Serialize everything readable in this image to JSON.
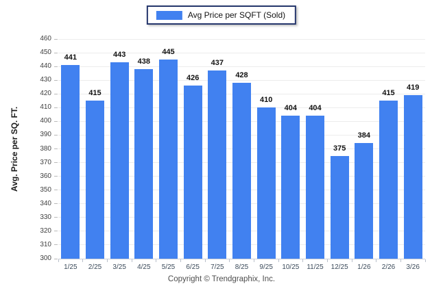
{
  "legend": {
    "label": "Avg Price per SQFT (Sold)"
  },
  "y_axis_title": "Avg. Price per SQ. FT.",
  "footer": "Copyright © Trendgraphix, Inc.",
  "colors": {
    "bar": "#4181f0",
    "legend_border": "#24356b",
    "gridline": "#ececec",
    "axis": "#c8cdd8"
  },
  "chart_data": {
    "type": "bar",
    "title": "Avg Price per SQFT (Sold)",
    "categories": [
      "1/25",
      "2/25",
      "3/25",
      "4/25",
      "5/25",
      "6/25",
      "7/25",
      "8/25",
      "9/25",
      "10/25",
      "11/25",
      "12/25",
      "1/26",
      "2/26",
      "3/26"
    ],
    "values": [
      441,
      415,
      443,
      438,
      445,
      426,
      437,
      428,
      410,
      404,
      404,
      375,
      384,
      415,
      419
    ],
    "series": [
      {
        "name": "Avg Price per SQFT (Sold)",
        "values": [
          441,
          415,
          443,
          438,
          445,
          426,
          437,
          428,
          410,
          404,
          404,
          375,
          384,
          415,
          419
        ]
      }
    ],
    "xlabel": "",
    "ylabel": "Avg. Price per SQ. FT.",
    "ylim": [
      300,
      460
    ],
    "ytick_step": 10,
    "grid": true,
    "legend_position": "top-center",
    "value_labels_shown": true
  }
}
